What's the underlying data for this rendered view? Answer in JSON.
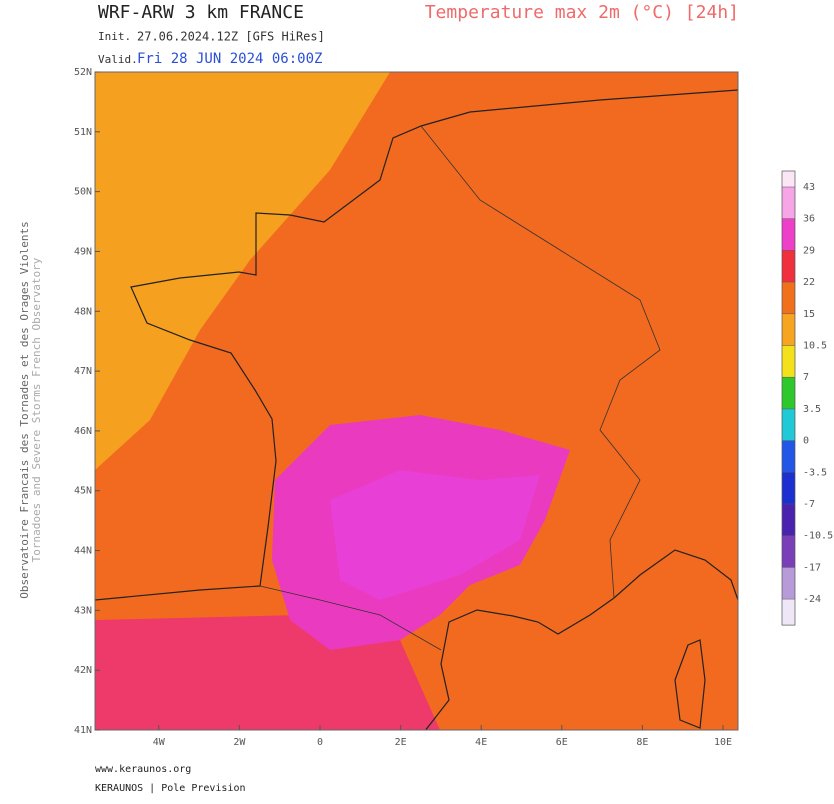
{
  "header": {
    "title": "WRF-ARW 3 km FRANCE",
    "product": "Temperature max 2m (°C) [24h]",
    "init_label": "Init.",
    "init": "27.06.2024.12Z [GFS HiRes]",
    "valid_label": "Valid.",
    "valid": "Fri 28 JUN 2024 06:00Z"
  },
  "map": {
    "lat_ticks": [
      {
        "value": 52,
        "label": "52N"
      },
      {
        "value": 51,
        "label": "51N"
      },
      {
        "value": 50,
        "label": "50N"
      },
      {
        "value": 49,
        "label": "49N"
      },
      {
        "value": 48,
        "label": "48N"
      },
      {
        "value": 47,
        "label": "47N"
      },
      {
        "value": 46,
        "label": "46N"
      },
      {
        "value": 45,
        "label": "45N"
      },
      {
        "value": 44,
        "label": "44N"
      },
      {
        "value": 43,
        "label": "43N"
      },
      {
        "value": 42,
        "label": "42N"
      },
      {
        "value": 41,
        "label": "41N"
      }
    ],
    "lon_ticks": [
      {
        "value": -4,
        "label": "4W"
      },
      {
        "value": -2,
        "label": "2W"
      },
      0,
      {
        "value": 2,
        "label": "2E"
      },
      {
        "value": 4,
        "label": "4E"
      },
      {
        "value": 6,
        "label": "6E"
      },
      {
        "value": 8,
        "label": "8E"
      },
      {
        "value": 10,
        "label": "10E"
      }
    ]
  },
  "colorbar": {
    "levels": [
      43,
      36,
      29,
      22,
      15,
      10.5,
      7,
      3.5,
      0,
      -3.5,
      -7,
      -10.5,
      -17,
      -24
    ],
    "colors": [
      "#fbe6f6",
      "#f6a6e6",
      "#ee3fc9",
      "#f0313d",
      "#f0701c",
      "#f7a521",
      "#f3e21b",
      "#2fc82c",
      "#1fc9d6",
      "#2256e6",
      "#1c2fd0",
      "#4a22b0",
      "#7a3fb8",
      "#b79ad8",
      "#efe7f7"
    ]
  },
  "side": {
    "line1": "Observatoire Francais des Tornades et des Orages Violents",
    "line2": "Tornadoes and Severe Storms French Observatory"
  },
  "footer": {
    "site": "www.keraunos.org",
    "org": "KERAUNOS | Pole Prevision"
  }
}
